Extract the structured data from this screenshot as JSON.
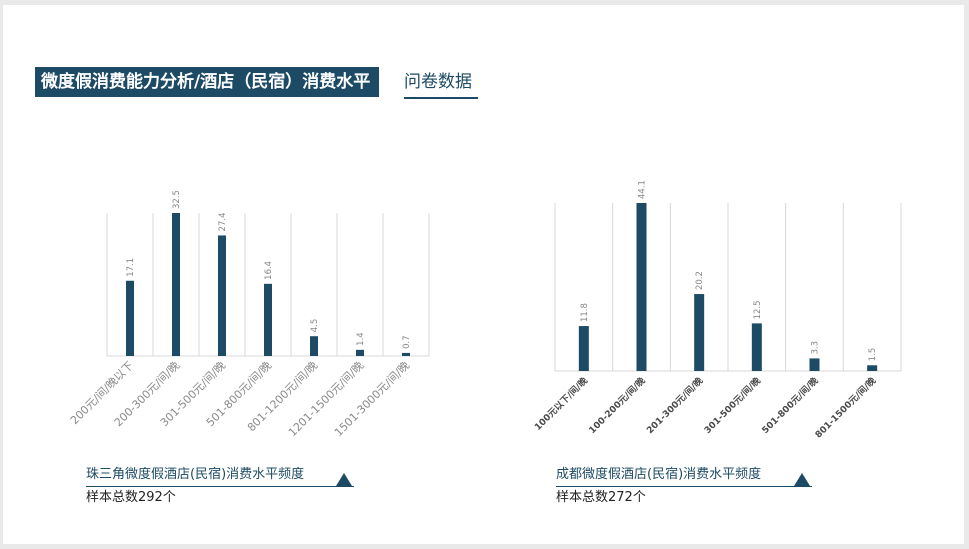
{
  "header": {
    "title": "微度假消费能力分析/酒店（民宿）消费水平",
    "subtitle": "问卷数据"
  },
  "chart_data": [
    {
      "type": "bar",
      "categories": [
        "200元/间/晚以下",
        "200-300元/间/晚",
        "301-500元/间/晚",
        "501-800元/间/晚",
        "801-1200元/间/晚",
        "1201-1500元/间/晚",
        "1501-3000元/间/晚"
      ],
      "values": [
        17.1,
        32.5,
        27.4,
        16.4,
        4.5,
        1.4,
        0.7
      ],
      "value_labels": [
        "17.1",
        "32.5",
        "27.4",
        "16.4",
        "4.5",
        "1.4",
        "0.7"
      ],
      "title": "珠三角微度假酒店(民宿)消费水平频度",
      "sample_text": "样本总数292个",
      "ylim": [
        0,
        32.5
      ],
      "grid": "vertical",
      "bar_color": "#1d4a64"
    },
    {
      "type": "bar",
      "categories": [
        "100元以下/间/晚",
        "100-200元/间/晚",
        "201-300元/间/晚",
        "301-500元/间/晚",
        "501-800元/间/晚",
        "801-1500元/间/晚"
      ],
      "values": [
        11.8,
        44.1,
        20.2,
        12.5,
        3.3,
        1.5
      ],
      "value_labels": [
        "11.8",
        "44.1",
        "20.2",
        "12.5",
        "3.3",
        "1.5"
      ],
      "title": "成都微度假酒店(民宿)消费水平频度",
      "sample_text": "样本总数272个",
      "ylim": [
        0,
        44.1
      ],
      "grid": "vertical",
      "bar_color": "#1d4a64"
    }
  ]
}
